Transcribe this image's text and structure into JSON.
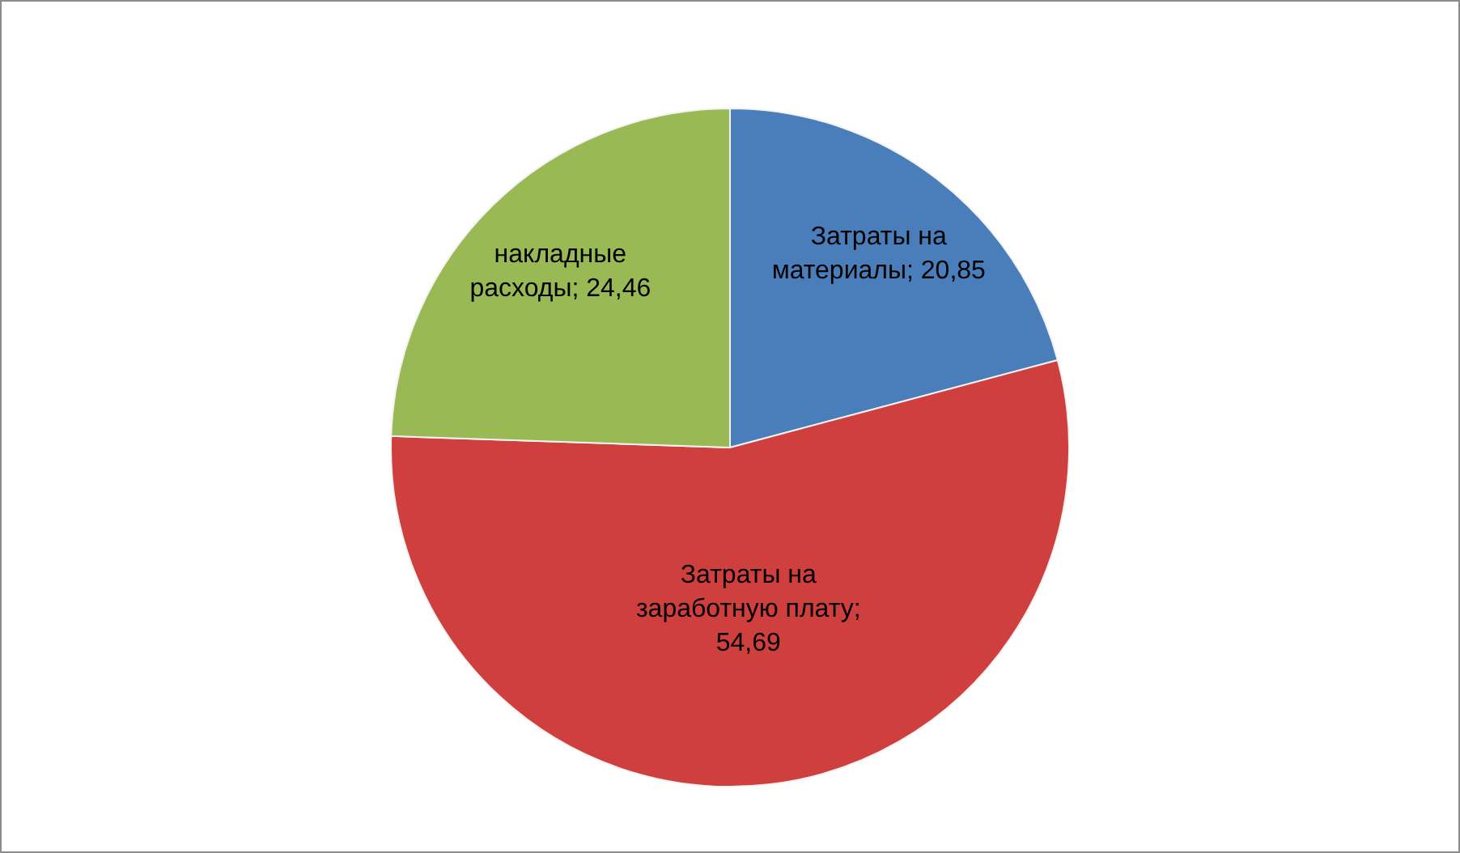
{
  "chart_data": {
    "type": "pie",
    "categories": [
      "Затраты на материалы",
      "Затраты на заработную плату",
      "накладные расходы"
    ],
    "values": [
      20.85,
      54.69,
      24.46
    ],
    "colors": [
      "#4a7ebb",
      "#cf3f3d",
      "#98b954"
    ],
    "value_labels": [
      "; 20,85",
      "; 54,69",
      "; 24,46"
    ],
    "legend": false
  }
}
